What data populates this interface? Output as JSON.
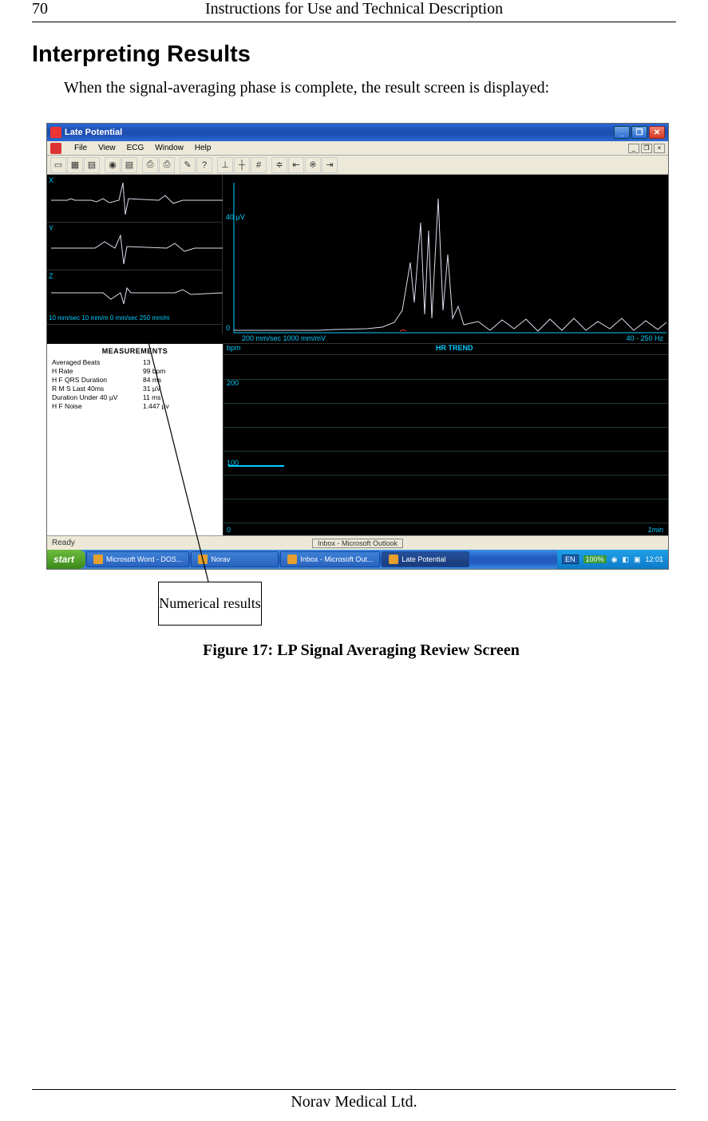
{
  "page_number": "70",
  "header_title": "Instructions for Use and Technical Description",
  "section_heading": "Interpreting Results",
  "intro_text": "When the signal-averaging phase is complete, the result screen is displayed:",
  "callout_label": "Numerical results",
  "figure_caption": "Figure 17: LP Signal Averaging Review Screen",
  "footer": "Norav Medical Ltd.",
  "screenshot": {
    "titlebar_text": "Late Potential",
    "menu_items": [
      "File",
      "View",
      "ECG",
      "Window",
      "Help"
    ],
    "toolbar_icons": [
      "▭",
      "▦",
      "▤",
      " ",
      "◉",
      "▤",
      " ",
      "⎙",
      "⎙",
      " ",
      "✎",
      "?",
      " ",
      "⊥",
      "┼",
      "#",
      " ",
      "≑",
      "⇤",
      "※",
      "⇥"
    ],
    "xyz_labels": [
      "X",
      "Y",
      "Z"
    ],
    "xyz_scale": "10 mm/sec 10 mm/m 0 mm/sec 250 mm/m",
    "signal": {
      "y_label": "40 µV",
      "zero": "0",
      "x_scale": "200 mm/sec 1000 mm/mV",
      "filter": "40 - 250 Hz"
    },
    "measurements": {
      "title": "MEASUREMENTS",
      "rows": [
        {
          "label": "Averaged Beats",
          "value": "13"
        },
        {
          "label": "H Rate",
          "value": "99 bpm"
        },
        {
          "label": "H F QRS Duration",
          "value": "84 ms"
        },
        {
          "label": "R M S Last 40ms",
          "value": "31 µV"
        },
        {
          "label": "Duration Under 40 µV",
          "value": "11 ms"
        },
        {
          "label": "H F Noise",
          "value": "1.447 µv"
        }
      ]
    },
    "hr_trend": {
      "bpm_label": "bpm",
      "title": "HR TREND",
      "y_ticks": [
        "200",
        "100"
      ],
      "zero": "0",
      "x_label": "1min"
    },
    "status_label": "Ready",
    "status_center": "Inbox - Microsoft Outlook",
    "taskbar": {
      "start": "start",
      "buttons": [
        {
          "label": "Microsoft Word - DOS...",
          "active": false
        },
        {
          "label": "Norav",
          "active": false
        },
        {
          "label": "Inbox - Microsoft Out...",
          "active": false
        },
        {
          "label": "Late Potential",
          "active": true
        }
      ],
      "lang": "EN",
      "pct": "100%",
      "time": "12:01"
    }
  }
}
